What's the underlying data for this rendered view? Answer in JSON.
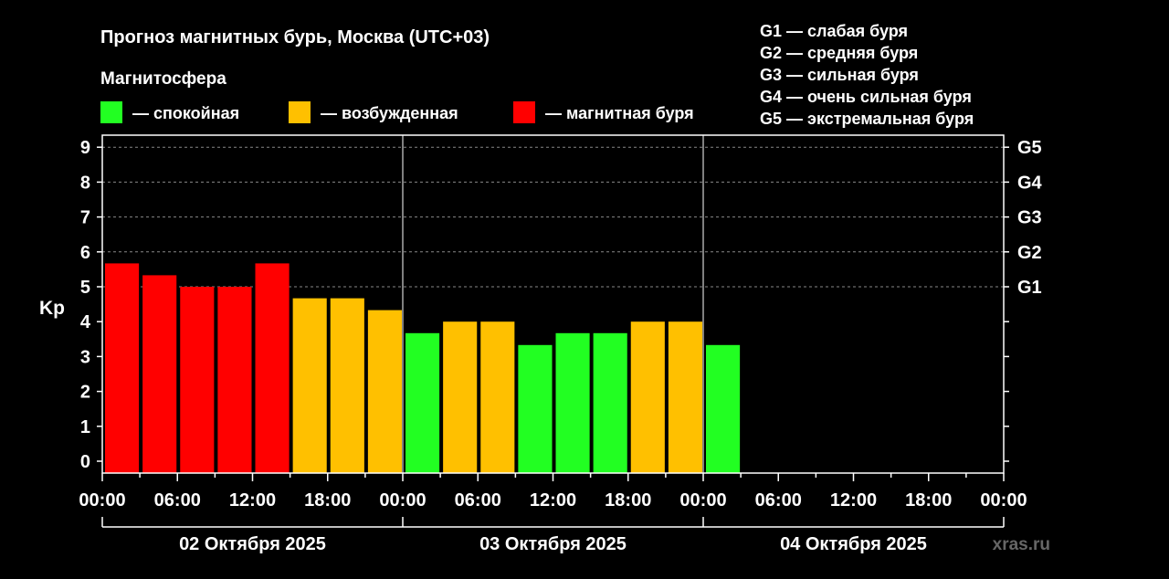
{
  "title": "Прогноз магнитных бурь, Москва (UTC+03)",
  "legend": {
    "heading": "Магнитосфера",
    "items": [
      {
        "label": "— спокойная",
        "color": "#22ff22"
      },
      {
        "label": "— возбужденная",
        "color": "#ffc000"
      },
      {
        "label": "— магнитная буря",
        "color": "#ff0000"
      }
    ]
  },
  "g_scale": [
    "G1 — слабая буря",
    "G2 — средняя буря",
    "G3 — сильная буря",
    "G4 — очень сильная буря",
    "G5 — экстремальная буря"
  ],
  "watermark": "xras.ru",
  "chart_data": {
    "type": "bar",
    "ylabel": "Kp",
    "ylim": [
      0,
      9
    ],
    "yticks": [
      "0",
      "1",
      "2",
      "3",
      "4",
      "5",
      "6",
      "7",
      "8",
      "9"
    ],
    "g_axis": [
      {
        "label": "G1",
        "kp": 5
      },
      {
        "label": "G2",
        "kp": 6
      },
      {
        "label": "G3",
        "kp": 7
      },
      {
        "label": "G4",
        "kp": 8
      },
      {
        "label": "G5",
        "kp": 9
      }
    ],
    "grid": "dashed horizontal",
    "xticks": [
      "00:00",
      "06:00",
      "12:00",
      "18:00",
      "00:00",
      "06:00",
      "12:00",
      "18:00",
      "00:00",
      "06:00",
      "12:00",
      "18:00",
      "00:00"
    ],
    "days": [
      "02 Октября 2025",
      "03 Октября 2025",
      "04 Октября 2025"
    ],
    "interval_hours": 3,
    "bars": [
      {
        "value": 5.67,
        "level": "storm"
      },
      {
        "value": 5.33,
        "level": "storm"
      },
      {
        "value": 5.0,
        "level": "storm"
      },
      {
        "value": 5.0,
        "level": "storm"
      },
      {
        "value": 5.67,
        "level": "storm"
      },
      {
        "value": 4.67,
        "level": "active"
      },
      {
        "value": 4.67,
        "level": "active"
      },
      {
        "value": 4.33,
        "level": "active"
      },
      {
        "value": 3.67,
        "level": "quiet"
      },
      {
        "value": 4.0,
        "level": "active"
      },
      {
        "value": 4.0,
        "level": "active"
      },
      {
        "value": 3.33,
        "level": "quiet"
      },
      {
        "value": 3.67,
        "level": "quiet"
      },
      {
        "value": 3.67,
        "level": "quiet"
      },
      {
        "value": 4.0,
        "level": "active"
      },
      {
        "value": 4.0,
        "level": "active"
      },
      {
        "value": 3.33,
        "level": "quiet"
      }
    ],
    "level_colors": {
      "quiet": "#22ff22",
      "active": "#ffc000",
      "storm": "#ff0000"
    }
  }
}
